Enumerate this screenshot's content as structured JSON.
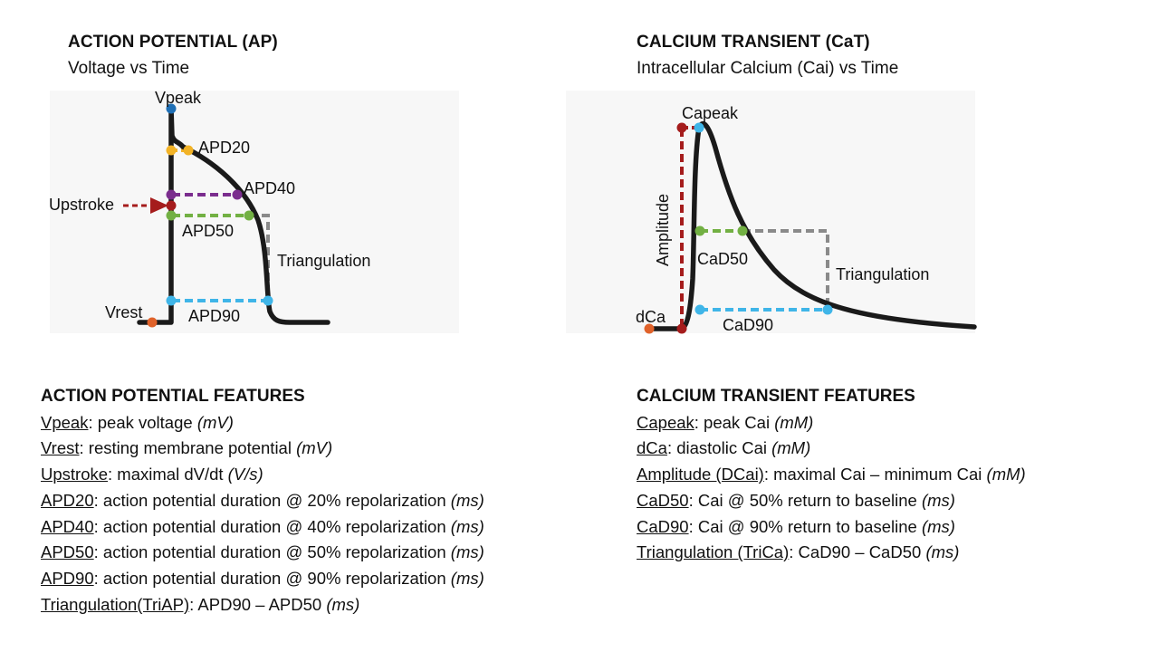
{
  "ap": {
    "title": "ACTION POTENTIAL (AP)",
    "subtitle": "Voltage vs Time",
    "labels": {
      "vpeak": "Vpeak",
      "apd20": "APD20",
      "apd40": "APD40",
      "upstroke": "Upstroke",
      "apd50": "APD50",
      "triangulation": "Triangulation",
      "vrest": "Vrest",
      "apd90": "APD90"
    }
  },
  "cat": {
    "title": "CALCIUM TRANSIENT (CaT)",
    "subtitle": "Intracellular Calcium (Cai) vs Time",
    "labels": {
      "capeak": "Capeak",
      "amplitude": "Amplitude",
      "cad50": "CaD50",
      "triangulation": "Triangulation",
      "dca": "dCa",
      "cad90": "CaD90"
    }
  },
  "colors": {
    "curve": "#1a1a1a",
    "peak_blue": "#1f6fb5",
    "yellow": "#f2b327",
    "purple": "#7b2d8e",
    "red": "#a51c1c",
    "green": "#72b043",
    "gray": "#8a8a8a",
    "light_blue": "#3fb5e8",
    "orange": "#e0622a"
  },
  "ap_features": {
    "title": "ACTION POTENTIAL FEATURES",
    "items": [
      {
        "term": "Vpeak",
        "desc": ": peak voltage ",
        "unit": "(mV)"
      },
      {
        "term": "Vrest",
        "desc": ": resting membrane potential ",
        "unit": "(mV)"
      },
      {
        "term": "Upstroke",
        "desc": ": maximal dV/dt ",
        "unit": "(V/s)"
      },
      {
        "term": "APD20",
        "desc": ": action potential duration @ 20% repolarization ",
        "unit": "(ms)"
      },
      {
        "term": "APD40",
        "desc": ": action potential duration @ 40% repolarization ",
        "unit": "(ms)"
      },
      {
        "term": "APD50",
        "desc": ": action potential duration @ 50% repolarization ",
        "unit": "(ms)"
      },
      {
        "term": "APD90",
        "desc": ": action potential duration @ 90% repolarization ",
        "unit": "(ms)"
      },
      {
        "term": "Triangulation(TriAP)",
        "desc": ": APD90 – APD50 ",
        "unit": "(ms)"
      }
    ]
  },
  "cat_features": {
    "title": "CALCIUM TRANSIENT FEATURES",
    "items": [
      {
        "term": "Capeak",
        "desc": ": peak Cai ",
        "unit": "(mM)"
      },
      {
        "term": "dCa",
        "desc": ": diastolic Cai ",
        "unit": "(mM)"
      },
      {
        "term": "Amplitude (DCai)",
        "desc": ": maximal Cai – minimum Cai ",
        "unit": "(mM)"
      },
      {
        "term": "CaD50",
        "desc": ": Cai @ 50% return to baseline ",
        "unit": "(ms)"
      },
      {
        "term": "CaD90",
        "desc": ": Cai @ 90% return to baseline ",
        "unit": "(ms)"
      },
      {
        "term": "Triangulation (TriCa)",
        "desc": ": CaD90 – CaD50 ",
        "unit": "(ms)"
      }
    ]
  }
}
